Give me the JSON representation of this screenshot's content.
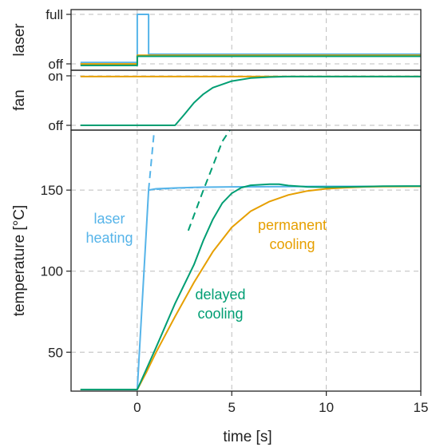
{
  "chart_data": [
    {
      "panel": "laser",
      "type": "line",
      "ylabel": "laser",
      "xlim": [
        -3.5,
        15
      ],
      "y_ticks": [
        "full",
        "off"
      ],
      "grid": true,
      "series": [
        {
          "color": "#56b4e9",
          "x": [
            -3,
            0,
            0,
            0.6,
            0.6,
            15
          ],
          "y": [
            0.06,
            0.06,
            1,
            1,
            0.22,
            0.22
          ]
        },
        {
          "color": "#e69f00",
          "x": [
            -3,
            0,
            0,
            15
          ],
          "y": [
            0.03,
            0.03,
            0.2,
            0.2
          ]
        },
        {
          "color": "#009e73",
          "x": [
            -3,
            0,
            0,
            15
          ],
          "y": [
            0.0,
            0.0,
            0.18,
            0.18
          ]
        }
      ]
    },
    {
      "panel": "fan",
      "type": "line",
      "ylabel": "fan",
      "xlim": [
        -3.5,
        15
      ],
      "y_ticks": [
        "on",
        "off"
      ],
      "grid": true,
      "series": [
        {
          "color": "#e69f00",
          "x": [
            -3,
            15
          ],
          "y": [
            0.97,
            0.97
          ]
        },
        {
          "color": "#009e73",
          "x": [
            -3,
            2,
            2.5,
            3,
            3.5,
            4,
            5,
            6,
            7,
            8,
            10,
            15
          ],
          "y": [
            0,
            0,
            0.22,
            0.45,
            0.62,
            0.75,
            0.88,
            0.94,
            0.96,
            0.97,
            0.97,
            0.97
          ]
        }
      ]
    },
    {
      "panel": "temperature",
      "type": "line",
      "xlabel": "time [s]",
      "ylabel": "temperature [°C]",
      "xlim": [
        -3.5,
        15
      ],
      "ylim": [
        26,
        187
      ],
      "x_ticks": [
        0,
        5,
        10,
        15
      ],
      "y_ticks": [
        50,
        100,
        150
      ],
      "grid": true,
      "series": [
        {
          "color": "#56b4e9",
          "x": [
            -3,
            0,
            0.6,
            1,
            2,
            3,
            5,
            8,
            10,
            15
          ],
          "y": [
            27,
            27,
            150,
            150.8,
            151.3,
            151.7,
            152,
            152.2,
            152.3,
            152.3
          ]
        },
        {
          "color": "#56b4e9",
          "style": "dashed",
          "x": [
            0.6,
            0.9
          ],
          "y": [
            150,
            187
          ]
        },
        {
          "color": "#56b4e9",
          "style": "dashed-thin",
          "x": [
            0.6,
            2,
            4,
            7,
            10,
            15
          ],
          "y": [
            150,
            151,
            151.8,
            152.1,
            152.2,
            152.3
          ]
        },
        {
          "color": "#e69f00",
          "x": [
            -3,
            0,
            0.5,
            1,
            2,
            3,
            4,
            5,
            6,
            7,
            8,
            9,
            10,
            11,
            12,
            13,
            15
          ],
          "y": [
            27,
            27,
            38,
            50,
            72,
            93,
            112,
            127,
            137,
            143,
            147,
            149.5,
            150.8,
            151.5,
            152,
            152.2,
            152.3
          ]
        },
        {
          "color": "#009e73",
          "x": [
            -3,
            0,
            0.5,
            1,
            2,
            3,
            3.5,
            4,
            4.5,
            5,
            5.5,
            6,
            7,
            7.5,
            8,
            9,
            10,
            11,
            12,
            13,
            15
          ],
          "y": [
            27,
            27,
            40,
            53,
            80,
            104,
            119,
            132,
            142,
            148,
            151.5,
            153,
            153.6,
            153.6,
            152.8,
            152,
            151.8,
            152,
            152.2,
            152.4,
            152.5
          ]
        },
        {
          "color": "#009e73",
          "style": "dashed",
          "x": [
            2.7,
            3.5,
            4,
            4.5,
            4.9
          ],
          "y": [
            125,
            150,
            165,
            180,
            187
          ]
        }
      ],
      "annotations": [
        {
          "lines": [
            "laser",
            "heating"
          ],
          "color": "#56b4e9"
        },
        {
          "lines": [
            "permanent",
            "cooling"
          ],
          "color": "#e69f00"
        },
        {
          "lines": [
            "delayed",
            "cooling"
          ],
          "color": "#009e73"
        }
      ]
    }
  ]
}
